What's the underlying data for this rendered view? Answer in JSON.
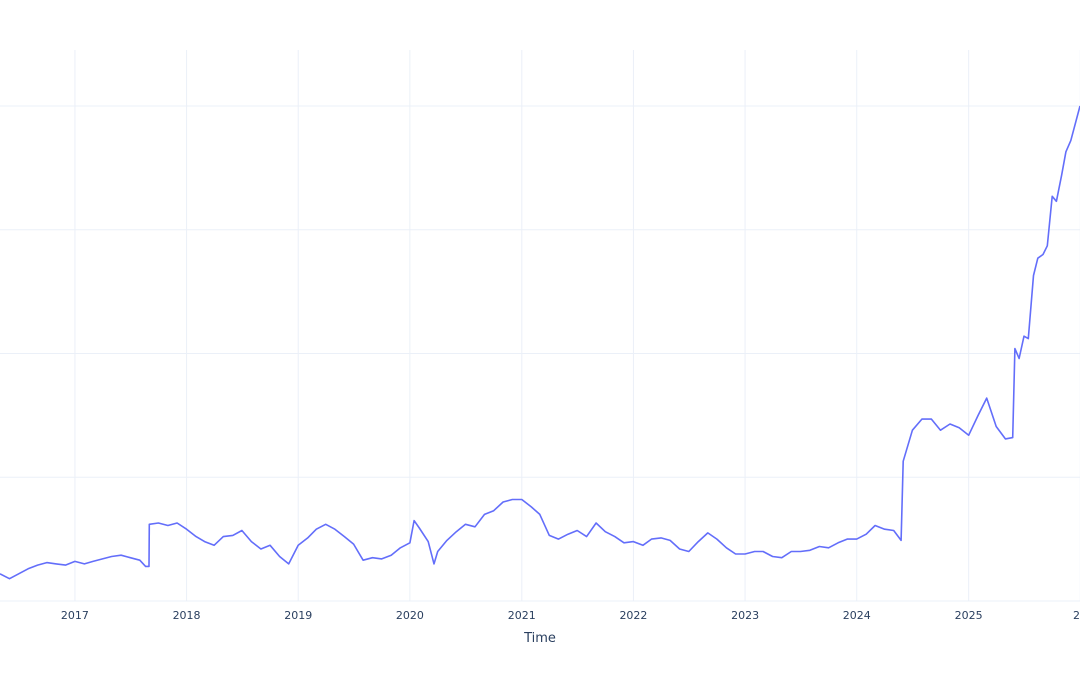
{
  "chart_data": {
    "type": "line",
    "xlabel": "Time",
    "xlim": [
      "2016-05-01",
      "2025-12-31"
    ],
    "ylim": [
      0,
      4
    ],
    "yticks": [
      1,
      2,
      3,
      4
    ],
    "y_tick_labels_visible": false,
    "grid": true,
    "legend": false,
    "x_tick_labels": [
      "2017",
      "2018",
      "2019",
      "2020",
      "2021",
      "2022",
      "2023",
      "2024",
      "2025",
      "2"
    ],
    "x_tick_dates": [
      "2017-01-01",
      "2018-01-01",
      "2019-01-01",
      "2020-01-01",
      "2021-01-01",
      "2022-01-01",
      "2023-01-01",
      "2024-01-01",
      "2025-01-01",
      "2026-01-01"
    ],
    "series": [
      {
        "color": "#636efa",
        "x": [
          "2016-05-01",
          "2016-06-01",
          "2016-07-01",
          "2016-08-01",
          "2016-09-01",
          "2016-10-01",
          "2016-11-01",
          "2016-12-01",
          "2017-01-01",
          "2017-02-01",
          "2017-03-01",
          "2017-04-01",
          "2017-05-01",
          "2017-06-01",
          "2017-07-01",
          "2017-08-01",
          "2017-08-20",
          "2017-08-31",
          "2017-09-01",
          "2017-10-01",
          "2017-11-01",
          "2017-12-01",
          "2018-01-01",
          "2018-02-01",
          "2018-03-01",
          "2018-04-01",
          "2018-05-01",
          "2018-06-01",
          "2018-07-01",
          "2018-08-01",
          "2018-09-01",
          "2018-10-01",
          "2018-11-01",
          "2018-12-01",
          "2019-01-01",
          "2019-02-01",
          "2019-03-01",
          "2019-04-01",
          "2019-05-01",
          "2019-06-01",
          "2019-07-01",
          "2019-08-01",
          "2019-09-01",
          "2019-10-01",
          "2019-11-01",
          "2019-12-01",
          "2020-01-01",
          "2020-01-15",
          "2020-02-01",
          "2020-03-01",
          "2020-03-20",
          "2020-04-01",
          "2020-05-01",
          "2020-06-01",
          "2020-07-01",
          "2020-08-01",
          "2020-09-01",
          "2020-10-01",
          "2020-11-01",
          "2020-12-01",
          "2021-01-01",
          "2021-02-01",
          "2021-03-01",
          "2021-04-01",
          "2021-05-01",
          "2021-06-01",
          "2021-07-01",
          "2021-08-01",
          "2021-09-01",
          "2021-10-01",
          "2021-11-01",
          "2021-12-01",
          "2022-01-01",
          "2022-02-01",
          "2022-03-01",
          "2022-04-01",
          "2022-05-01",
          "2022-06-01",
          "2022-07-01",
          "2022-08-01",
          "2022-09-01",
          "2022-10-01",
          "2022-11-01",
          "2022-12-01",
          "2023-01-01",
          "2023-02-01",
          "2023-03-01",
          "2023-04-01",
          "2023-05-01",
          "2023-06-01",
          "2023-07-01",
          "2023-08-01",
          "2023-09-01",
          "2023-10-01",
          "2023-11-01",
          "2023-12-01",
          "2024-01-01",
          "2024-02-01",
          "2024-03-01",
          "2024-04-01",
          "2024-05-01",
          "2024-05-25",
          "2024-06-01",
          "2024-07-01",
          "2024-08-01",
          "2024-09-01",
          "2024-10-01",
          "2024-11-01",
          "2024-12-01",
          "2025-01-01",
          "2025-02-01",
          "2025-03-01",
          "2025-04-01",
          "2025-05-01",
          "2025-05-25",
          "2025-06-01",
          "2025-06-15",
          "2025-07-01",
          "2025-07-15",
          "2025-08-01",
          "2025-08-15",
          "2025-09-01",
          "2025-09-15",
          "2025-10-01",
          "2025-10-15",
          "2025-11-01",
          "2025-11-15",
          "2025-12-01",
          "2025-12-31"
        ],
        "y": [
          0.22,
          0.18,
          0.22,
          0.26,
          0.29,
          0.31,
          0.3,
          0.29,
          0.32,
          0.3,
          0.32,
          0.34,
          0.36,
          0.37,
          0.35,
          0.33,
          0.28,
          0.28,
          0.62,
          0.63,
          0.61,
          0.63,
          0.58,
          0.52,
          0.48,
          0.45,
          0.52,
          0.53,
          0.57,
          0.48,
          0.42,
          0.45,
          0.36,
          0.3,
          0.45,
          0.51,
          0.58,
          0.62,
          0.58,
          0.52,
          0.46,
          0.33,
          0.35,
          0.34,
          0.37,
          0.43,
          0.47,
          0.65,
          0.59,
          0.48,
          0.3,
          0.4,
          0.49,
          0.56,
          0.62,
          0.6,
          0.7,
          0.73,
          0.8,
          0.82,
          0.82,
          0.76,
          0.7,
          0.53,
          0.5,
          0.54,
          0.57,
          0.52,
          0.63,
          0.56,
          0.52,
          0.47,
          0.48,
          0.45,
          0.5,
          0.51,
          0.49,
          0.42,
          0.4,
          0.48,
          0.55,
          0.5,
          0.43,
          0.38,
          0.38,
          0.4,
          0.4,
          0.36,
          0.35,
          0.4,
          0.4,
          0.41,
          0.44,
          0.43,
          0.47,
          0.5,
          0.5,
          0.54,
          0.61,
          0.58,
          0.57,
          0.49,
          1.13,
          1.38,
          1.47,
          1.47,
          1.38,
          1.43,
          1.4,
          1.34,
          1.5,
          1.64,
          1.41,
          1.31,
          1.32,
          2.04,
          1.96,
          2.14,
          2.12,
          2.63,
          2.77,
          2.8,
          2.87,
          3.27,
          3.23,
          3.44,
          3.63,
          3.72,
          4.0
        ]
      }
    ]
  }
}
